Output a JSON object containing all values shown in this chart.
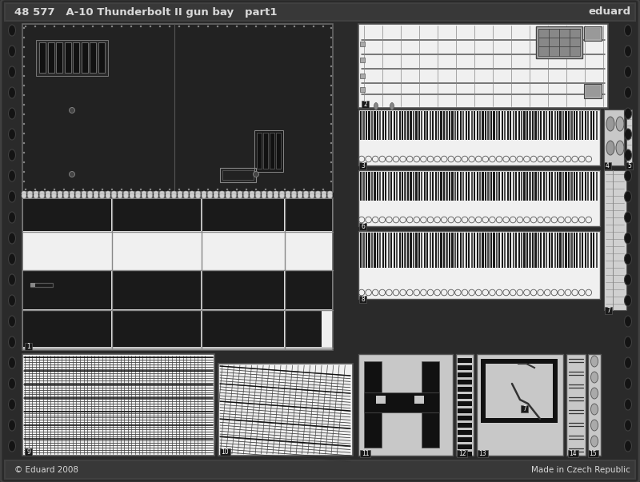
{
  "title_left": "48 577   A-10 Thunderbolt II gun bay   part1",
  "title_right": "eduard",
  "footer_left": "© Eduard 2008",
  "footer_right": "Made in Czech Republic",
  "bg_outer": "#1e1e1e",
  "bg_fret": "#2a2a2a",
  "bg_header": "#383838",
  "text_color": "#d8d8d8",
  "part_dark": "#1a1a1a",
  "part_light": "#f0f0f0",
  "part_grey": "#c0c0c0",
  "part_mid": "#888888",
  "part_dgrey": "#686868",
  "edge_col": "#505050",
  "line_col": "#505050",
  "hole_col": "#141414"
}
